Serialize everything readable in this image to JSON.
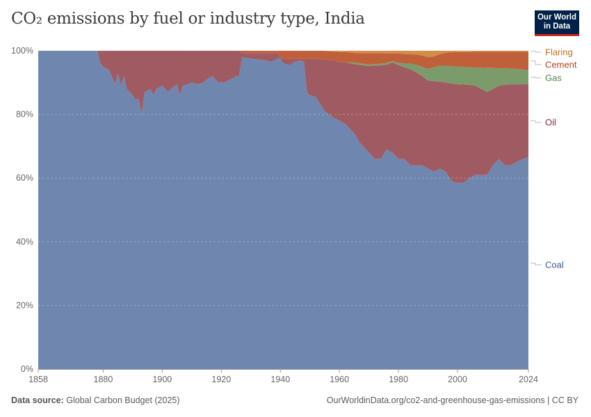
{
  "header": {
    "title": "CO₂ emissions by fuel or industry type, India",
    "logo_line1": "Our World",
    "logo_line2": "in Data"
  },
  "footer": {
    "source_label": "Data source:",
    "source_value": "Global Carbon Budget (2025)",
    "url": "OurWorldinData.org/co2-and-greenhouse-gas-emissions | CC BY"
  },
  "colors": {
    "Coal": "#6f87ae",
    "Oil": "#a05a61",
    "Gas": "#7b9b6b",
    "Cement": "#c0603a",
    "Flaring": "#d18c45"
  },
  "label_colors": {
    "Coal": "#3d5a93",
    "Oil": "#8a2a3b",
    "Gas": "#52864a",
    "Cement": "#b1441f",
    "Flaring": "#c36f1c"
  },
  "chart_data": {
    "type": "area",
    "stacked": "percent",
    "title": "CO₂ emissions by fuel or industry type, India",
    "xlim": [
      1858,
      2024
    ],
    "ylim": [
      0,
      100
    ],
    "y_ticks": [
      "0%",
      "20%",
      "40%",
      "60%",
      "80%",
      "100%"
    ],
    "x_ticks": [
      "1858",
      "1880",
      "1900",
      "1920",
      "1940",
      "1960",
      "1980",
      "2000",
      "2024"
    ],
    "grid": "horizontal dashed",
    "legend": "right, inline labels",
    "x": [
      1858,
      1878,
      1879,
      1880,
      1882,
      1884,
      1885,
      1886,
      1887,
      1888,
      1890,
      1891,
      1892,
      1893,
      1894,
      1896,
      1897,
      1898,
      1900,
      1902,
      1903,
      1905,
      1906,
      1907,
      1910,
      1912,
      1914,
      1915,
      1917,
      1919,
      1921,
      1923,
      1925,
      1926,
      1927,
      1930,
      1935,
      1937,
      1939,
      1940,
      1941,
      1943,
      1945,
      1947,
      1948,
      1949,
      1950,
      1952,
      1955,
      1958,
      1960,
      1962,
      1965,
      1967,
      1970,
      1972,
      1974,
      1976,
      1978,
      1980,
      1982,
      1984,
      1986,
      1988,
      1990,
      1992,
      1994,
      1996,
      1998,
      2000,
      2002,
      2004,
      2006,
      2008,
      2010,
      2012,
      2014,
      2016,
      2018,
      2020,
      2022,
      2024
    ],
    "series": [
      {
        "name": "Coal",
        "values": [
          100,
          100,
          96,
          95,
          94,
          89.5,
          93,
          89,
          92,
          88,
          86,
          84.5,
          85,
          80,
          87,
          88,
          86,
          88,
          89,
          87,
          88,
          89.5,
          86,
          89,
          90,
          89.5,
          90,
          91,
          92,
          90,
          90,
          91,
          92,
          92,
          98,
          97.5,
          97,
          96.5,
          97.5,
          97.7,
          96,
          95.5,
          96.5,
          97,
          96.5,
          87,
          86,
          85.5,
          81,
          79,
          78,
          77,
          74,
          71,
          68,
          66,
          66,
          69,
          68,
          66,
          66,
          64,
          64,
          64,
          63,
          62,
          63,
          62,
          59,
          58.5,
          58.5,
          60,
          61,
          61,
          61,
          64,
          66,
          64,
          64,
          65,
          66,
          66.5
        ]
      },
      {
        "name": "Oil",
        "values": [
          0,
          0,
          4,
          5,
          6,
          10.5,
          7,
          11,
          8,
          12,
          14,
          15.5,
          15,
          20,
          13,
          12,
          14,
          12,
          11,
          13,
          12,
          10.5,
          14,
          11,
          10,
          10.5,
          10,
          9,
          8,
          10,
          10,
          9,
          8,
          8,
          1.3,
          1.8,
          2.3,
          2.8,
          1.8,
          0.3,
          1.5,
          1.9,
          0.9,
          0.4,
          0.9,
          10.4,
          11.4,
          11.9,
          16.2,
          18,
          18.5,
          19.3,
          21.8,
          24.5,
          27.2,
          29.3,
          29.4,
          26.6,
          28.3,
          29.5,
          28.8,
          30.2,
          29.2,
          28,
          27.6,
          28.4,
          27.3,
          28,
          30.7,
          31,
          30.9,
          29.3,
          28,
          27,
          26,
          24,
          23,
          25.3,
          25.4,
          24.5,
          23.5,
          23
        ]
      },
      {
        "name": "Gas",
        "values": [
          0,
          0,
          0,
          0,
          0,
          0,
          0,
          0,
          0,
          0,
          0,
          0,
          0,
          0,
          0,
          0,
          0,
          0,
          0,
          0,
          0,
          0,
          0,
          0,
          0,
          0,
          0,
          0,
          0,
          0,
          0,
          0,
          0,
          0,
          0,
          0,
          0,
          0,
          0,
          0,
          0,
          0,
          0,
          0,
          0,
          0,
          0,
          0,
          0,
          0,
          0,
          0,
          0.5,
          0.5,
          0.5,
          0.5,
          0.5,
          0.6,
          0.5,
          0.7,
          1.2,
          1.7,
          2.4,
          3,
          3.7,
          4.4,
          5,
          5.3,
          5.4,
          5.5,
          5.5,
          5.5,
          5.7,
          6.7,
          7.6,
          6.6,
          5.5,
          5.2,
          5,
          4.8,
          4.6,
          4.4
        ]
      },
      {
        "name": "Cement",
        "values": [
          0,
          0,
          0,
          0,
          0,
          0,
          0,
          0,
          0,
          0,
          0,
          0,
          0,
          0,
          0,
          0,
          0,
          0,
          0,
          0,
          0,
          0,
          0,
          0,
          0,
          0,
          0,
          0,
          0,
          0,
          0,
          0,
          0,
          0,
          0.7,
          0.7,
          0.7,
          0.7,
          0.7,
          2,
          2.5,
          2.6,
          2.6,
          2.6,
          2.6,
          2.6,
          2.6,
          2.6,
          2.8,
          2.7,
          3.1,
          3.3,
          3,
          3.3,
          3.6,
          3.5,
          3.4,
          3,
          2.4,
          3,
          3,
          3,
          3.2,
          3.5,
          3.7,
          3.4,
          3.6,
          4.1,
          4.4,
          4.6,
          4.7,
          4.8,
          5,
          5,
          5.1,
          5.1,
          5.2,
          5.2,
          5.3,
          5.4,
          5.6,
          5.8
        ]
      },
      {
        "name": "Flaring",
        "values": [
          0,
          0,
          0,
          0,
          0,
          0,
          0,
          0,
          0,
          0,
          0,
          0,
          0,
          0,
          0,
          0,
          0,
          0,
          0,
          0,
          0,
          0,
          0,
          0,
          0,
          0,
          0,
          0,
          0,
          0,
          0,
          0,
          0,
          0,
          0,
          0,
          0,
          0,
          0,
          0,
          0,
          0,
          0,
          0,
          0,
          0,
          0,
          0,
          0,
          0.3,
          0.4,
          0.4,
          0.7,
          0.7,
          0.7,
          0.7,
          0.7,
          0.8,
          0.8,
          0.8,
          1,
          1.1,
          1.2,
          1.5,
          2,
          1.8,
          1.1,
          0.6,
          0.5,
          0.4,
          0.4,
          0.4,
          0.3,
          0.3,
          0.3,
          0.3,
          0.3,
          0.3,
          0.3,
          0.3,
          0.3,
          0.3
        ]
      }
    ]
  }
}
